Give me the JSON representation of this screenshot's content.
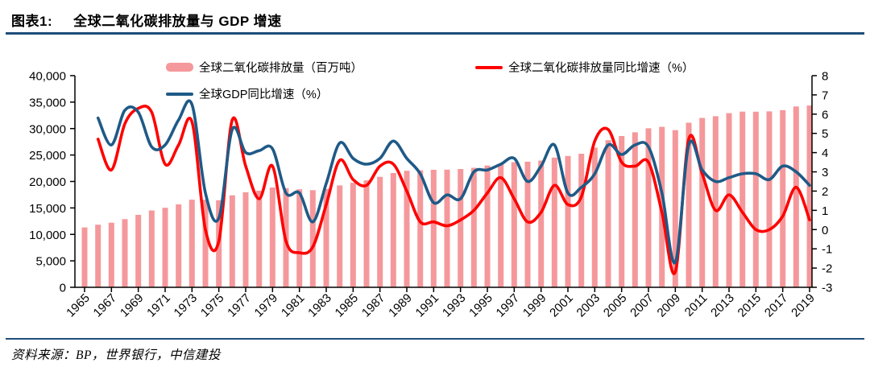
{
  "header": {
    "label": "图表1:",
    "title": "全球二氧化碳排放量与 GDP 增速"
  },
  "footer": {
    "source": "资料来源：BP，世界银行，中信建投"
  },
  "colors": {
    "rule": "#1F4E79",
    "axis": "#000000",
    "bar": "#F5989B",
    "co2_growth_line": "#FE0000",
    "gdp_growth_line": "#1F5A87"
  },
  "chart_data": {
    "type": "bar+line",
    "title": "全球二氧化碳排放量与 GDP 增速",
    "grid": false,
    "legend_position": "top-left",
    "x": [
      1965,
      1966,
      1967,
      1968,
      1969,
      1970,
      1971,
      1972,
      1973,
      1974,
      1975,
      1976,
      1977,
      1978,
      1979,
      1980,
      1981,
      1982,
      1983,
      1984,
      1985,
      1986,
      1987,
      1988,
      1989,
      1990,
      1991,
      1992,
      1993,
      1994,
      1995,
      1996,
      1997,
      1998,
      1999,
      2000,
      2001,
      2002,
      2003,
      2004,
      2005,
      2006,
      2007,
      2008,
      2009,
      2010,
      2011,
      2012,
      2013,
      2014,
      2015,
      2016,
      2017,
      2018,
      2019
    ],
    "series": [
      {
        "name": "全球二氧化碳排放量（百万吨）",
        "type": "bar",
        "axis": "left",
        "color": "#F5989B",
        "values": [
          11310,
          11840,
          12210,
          12880,
          13690,
          14520,
          15020,
          15680,
          16560,
          16550,
          16450,
          17390,
          17960,
          18250,
          18860,
          18740,
          18520,
          18350,
          18590,
          19250,
          19760,
          20220,
          20880,
          21590,
          22020,
          22110,
          22200,
          22240,
          22360,
          22580,
          23010,
          23300,
          23650,
          23740,
          23950,
          24500,
          24820,
          25240,
          26400,
          27800,
          28600,
          29300,
          30050,
          30320,
          29710,
          31110,
          32010,
          32330,
          32910,
          33200,
          33190,
          33250,
          33480,
          34180,
          34350
        ]
      },
      {
        "name": "全球二氧化碳排放量同比增速（%）",
        "type": "line",
        "axis": "right",
        "color": "#FE0000",
        "values": [
          null,
          4.7,
          3.1,
          5.5,
          6.3,
          6.1,
          3.4,
          4.4,
          5.6,
          0.0,
          -0.6,
          5.7,
          3.3,
          1.6,
          3.3,
          -0.6,
          -1.2,
          -0.9,
          1.3,
          3.6,
          2.6,
          2.3,
          3.3,
          3.4,
          2.0,
          0.4,
          0.4,
          0.2,
          0.5,
          1.0,
          1.9,
          2.7,
          1.6,
          0.4,
          0.9,
          2.3,
          1.3,
          1.7,
          4.6,
          5.2,
          3.5,
          3.3,
          3.5,
          0.9,
          -2.2,
          4.7,
          2.9,
          1.0,
          1.8,
          0.9,
          0.0,
          0.0,
          0.7,
          2.2,
          0.5
        ]
      },
      {
        "name": "全球GDP同比增速（%）",
        "type": "line",
        "axis": "right",
        "color": "#1F5A87",
        "values": [
          null,
          5.8,
          4.4,
          6.2,
          6.1,
          4.3,
          4.4,
          5.7,
          6.5,
          1.9,
          0.6,
          5.2,
          4.0,
          4.1,
          4.2,
          1.9,
          1.9,
          0.4,
          2.4,
          4.5,
          3.7,
          3.4,
          3.7,
          4.6,
          3.7,
          2.9,
          1.4,
          1.8,
          1.6,
          3.0,
          3.1,
          3.4,
          3.7,
          2.5,
          3.3,
          4.4,
          1.9,
          2.2,
          2.9,
          4.4,
          3.9,
          4.4,
          4.3,
          1.9,
          -1.7,
          4.4,
          3.1,
          2.5,
          2.7,
          2.9,
          2.9,
          2.6,
          3.3,
          3.0,
          2.3
        ]
      }
    ],
    "left_axis": {
      "min": 0,
      "max": 40000,
      "step": 5000,
      "tick_labels": [
        "0",
        "5,000",
        "10,000",
        "15,000",
        "20,000",
        "25,000",
        "30,000",
        "35,000",
        "40,000"
      ]
    },
    "right_axis": {
      "min": -3,
      "max": 8,
      "step": 1,
      "tick_labels": [
        "-3",
        "-2",
        "-1",
        "0",
        "1",
        "2",
        "3",
        "4",
        "5",
        "6",
        "7",
        "8"
      ]
    },
    "x_tick_years": [
      1965,
      1967,
      1969,
      1971,
      1973,
      1975,
      1977,
      1979,
      1981,
      1983,
      1985,
      1987,
      1989,
      1991,
      1993,
      1995,
      1997,
      1999,
      2001,
      2003,
      2005,
      2007,
      2009,
      2011,
      2013,
      2015,
      2017,
      2019
    ]
  }
}
